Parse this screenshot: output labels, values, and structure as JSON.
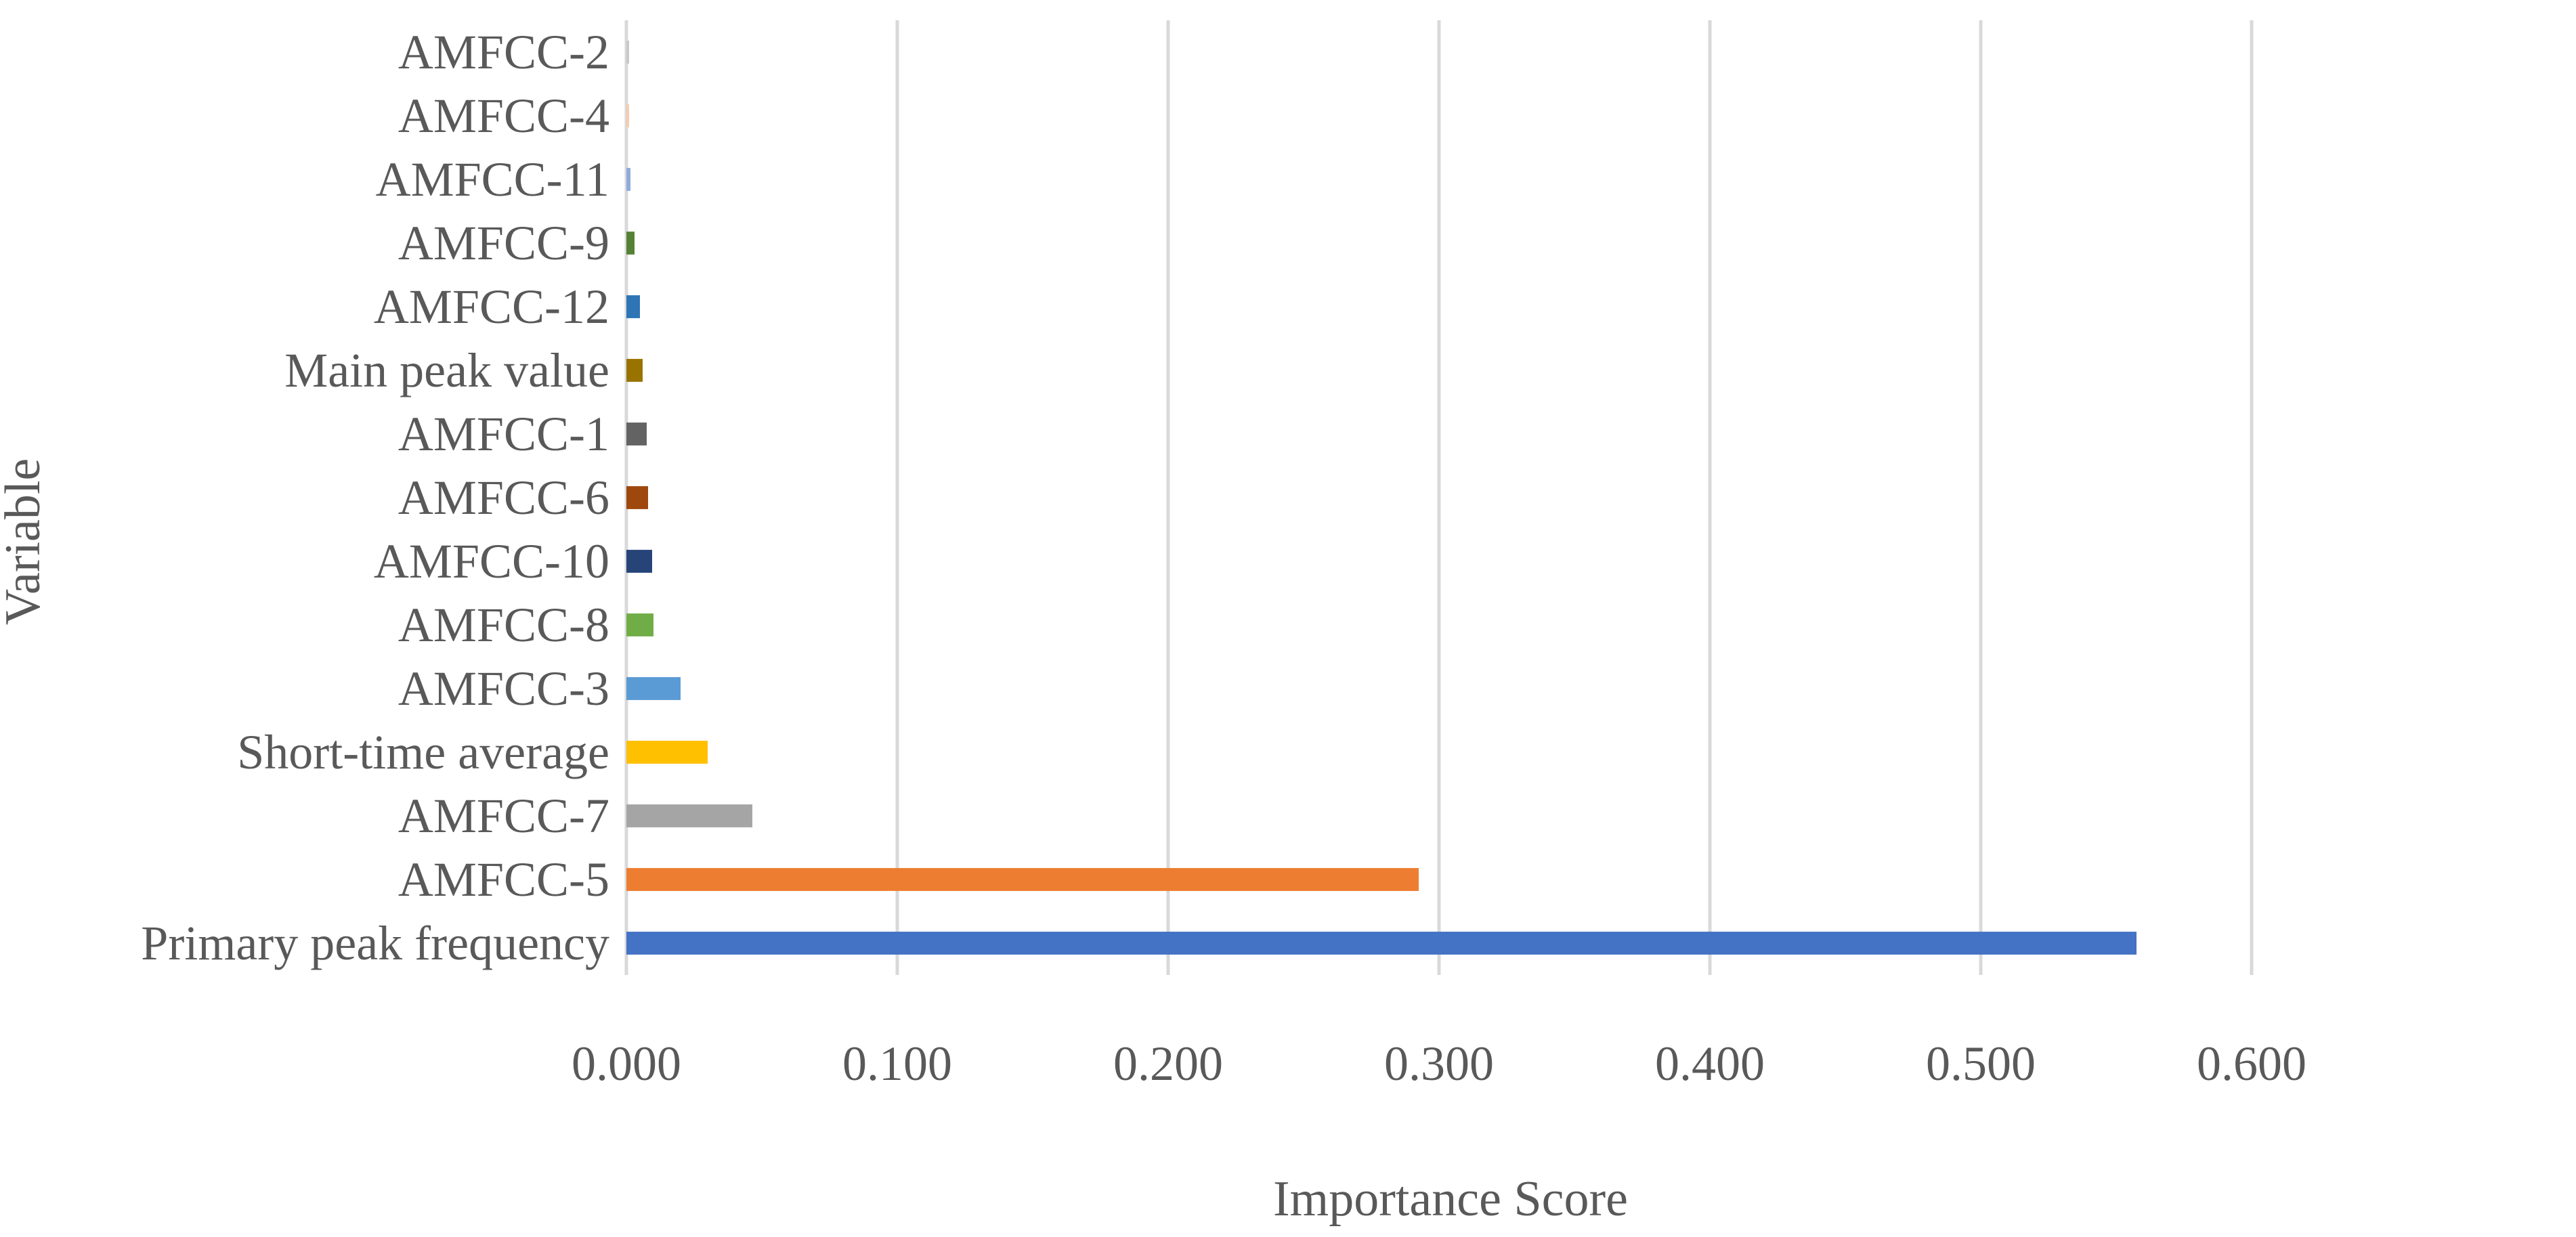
{
  "chart_data": {
    "type": "bar",
    "orientation": "horizontal",
    "xlabel": "Importance Score",
    "ylabel": "Variable",
    "xlim": [
      0,
      0.6
    ],
    "xticks": [
      "0.000",
      "0.100",
      "0.200",
      "0.300",
      "0.400",
      "0.500",
      "0.600"
    ],
    "grid": true,
    "legend": "none",
    "bars": [
      {
        "category": "AMFCC-2",
        "value": 0.001,
        "color": "#c9c9c9"
      },
      {
        "category": "AMFCC-4",
        "value": 0.001,
        "color": "#f8cbad"
      },
      {
        "category": "AMFCC-11",
        "value": 0.0015,
        "color": "#8faadc"
      },
      {
        "category": "AMFCC-9",
        "value": 0.003,
        "color": "#548235"
      },
      {
        "category": "AMFCC-12",
        "value": 0.005,
        "color": "#2e75b6"
      },
      {
        "category": "Main peak value",
        "value": 0.006,
        "color": "#997300"
      },
      {
        "category": "AMFCC-1",
        "value": 0.0075,
        "color": "#636363"
      },
      {
        "category": "AMFCC-6",
        "value": 0.008,
        "color": "#9e480e"
      },
      {
        "category": "AMFCC-10",
        "value": 0.0095,
        "color": "#264478"
      },
      {
        "category": "AMFCC-8",
        "value": 0.01,
        "color": "#70ad47"
      },
      {
        "category": "AMFCC-3",
        "value": 0.02,
        "color": "#5b9bd5"
      },
      {
        "category": "Short-time average",
        "value": 0.03,
        "color": "#ffc000"
      },
      {
        "category": "AMFCC-7",
        "value": 0.0465,
        "color": "#a5a5a5"
      },
      {
        "category": "AMFCC-5",
        "value": 0.2925,
        "color": "#ed7d31"
      },
      {
        "category": "Primary peak frequency",
        "value": 0.5575,
        "color": "#4472c4"
      }
    ]
  }
}
